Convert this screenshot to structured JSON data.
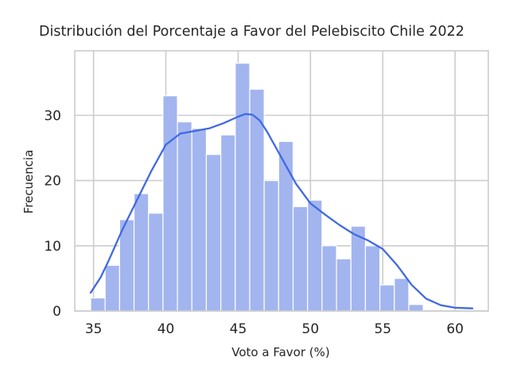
{
  "chart_data": {
    "type": "histogram",
    "title": "Distribución del Porcentaje a Favor del Pelebiscito Chile 2022",
    "xlabel": "Voto a Favor (%)",
    "ylabel": "Frecuencia",
    "xlim": [
      33.7,
      62.3
    ],
    "ylim": [
      0,
      39.9
    ],
    "x_ticks": [
      35,
      40,
      45,
      50,
      55,
      60
    ],
    "y_ticks": [
      0,
      10,
      20,
      30
    ],
    "grid": true,
    "bins": [
      {
        "x0": 34.8,
        "x1": 35.8,
        "count": 2
      },
      {
        "x0": 35.8,
        "x1": 36.8,
        "count": 7
      },
      {
        "x0": 36.8,
        "x1": 37.8,
        "count": 14
      },
      {
        "x0": 37.8,
        "x1": 38.8,
        "count": 18
      },
      {
        "x0": 38.8,
        "x1": 39.8,
        "count": 15
      },
      {
        "x0": 39.8,
        "x1": 40.8,
        "count": 33
      },
      {
        "x0": 40.8,
        "x1": 41.8,
        "count": 29
      },
      {
        "x0": 41.8,
        "x1": 42.8,
        "count": 28
      },
      {
        "x0": 42.8,
        "x1": 43.8,
        "count": 24
      },
      {
        "x0": 43.8,
        "x1": 44.8,
        "count": 27
      },
      {
        "x0": 44.8,
        "x1": 45.8,
        "count": 38
      },
      {
        "x0": 45.8,
        "x1": 46.8,
        "count": 34
      },
      {
        "x0": 46.8,
        "x1": 47.8,
        "count": 20
      },
      {
        "x0": 47.8,
        "x1": 48.8,
        "count": 26
      },
      {
        "x0": 48.8,
        "x1": 49.8,
        "count": 16
      },
      {
        "x0": 49.8,
        "x1": 50.8,
        "count": 17
      },
      {
        "x0": 50.8,
        "x1": 51.8,
        "count": 10
      },
      {
        "x0": 51.8,
        "x1": 52.8,
        "count": 8
      },
      {
        "x0": 52.8,
        "x1": 53.8,
        "count": 13
      },
      {
        "x0": 53.8,
        "x1": 54.8,
        "count": 10
      },
      {
        "x0": 54.8,
        "x1": 55.8,
        "count": 4
      },
      {
        "x0": 55.8,
        "x1": 56.8,
        "count": 5
      },
      {
        "x0": 56.8,
        "x1": 57.8,
        "count": 1
      },
      {
        "x0": 57.8,
        "x1": 58.8,
        "count": 0
      },
      {
        "x0": 58.8,
        "x1": 59.8,
        "count": 0
      },
      {
        "x0": 59.8,
        "x1": 60.8,
        "count": 0
      }
    ],
    "kde": {
      "x": [
        34.8,
        35.5,
        36.0,
        37.0,
        38.0,
        39.0,
        40.0,
        41.0,
        42.0,
        43.0,
        44.0,
        45.0,
        45.5,
        46.0,
        46.5,
        47.0,
        48.0,
        49.0,
        50.0,
        51.0,
        52.0,
        53.0,
        54.0,
        55.0,
        56.0,
        57.0,
        58.0,
        59.0,
        60.0,
        61.2
      ],
      "y": [
        2.8,
        5.2,
        7.5,
        12.5,
        17.0,
        21.5,
        25.5,
        27.2,
        27.6,
        28.0,
        28.8,
        29.8,
        30.2,
        30.1,
        29.2,
        27.5,
        23.5,
        19.5,
        16.5,
        14.8,
        13.2,
        11.8,
        10.8,
        9.5,
        7.0,
        4.0,
        1.9,
        0.9,
        0.5,
        0.4
      ]
    },
    "colors": {
      "bar_fill": "#a2b5ef",
      "bar_edge": "#ffffff",
      "kde_line": "#4169e1",
      "grid": "#cccccc",
      "axes_edge": "#cccccc"
    }
  }
}
